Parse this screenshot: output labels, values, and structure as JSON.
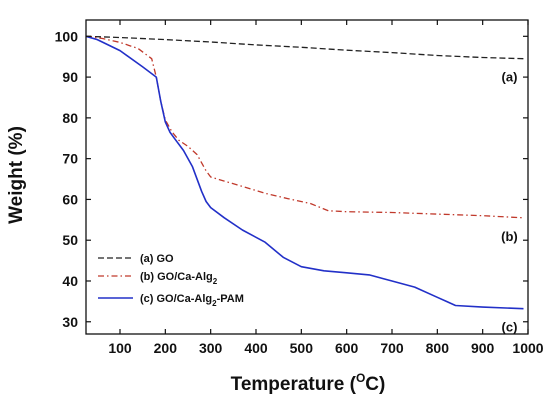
{
  "chart_data": {
    "type": "line",
    "xlabel": "Temperature",
    "xlabel_unit_sup": "O",
    "xlabel_unit_main": "C",
    "ylabel": "Weight (%)",
    "xlim": [
      25,
      1000
    ],
    "ylim": [
      27,
      104
    ],
    "x_ticks": [
      100,
      200,
      300,
      400,
      500,
      600,
      700,
      800,
      900,
      1000
    ],
    "y_ticks": [
      30,
      40,
      50,
      60,
      70,
      80,
      90,
      100
    ],
    "grid": false,
    "legend_position": "bottom-left",
    "series": [
      {
        "name": "(a) GO",
        "legend_main": "(a) GO",
        "legend_sub": "",
        "legend_suffix": "",
        "tag": "(a)",
        "color": "#222222",
        "style": "dashed",
        "x": [
          25,
          100,
          200,
          300,
          400,
          500,
          600,
          700,
          800,
          900,
          990
        ],
        "y": [
          100,
          99.7,
          99.2,
          98.6,
          97.9,
          97.3,
          96.6,
          96.0,
          95.3,
          94.8,
          94.5
        ]
      },
      {
        "name": "(b) GO/Ca-Alg2",
        "legend_main": "(b) GO/Ca-Alg",
        "legend_sub": "2",
        "legend_suffix": "",
        "tag": "(b)",
        "color": "#c0392b",
        "style": "dashdot",
        "x": [
          25,
          60,
          100,
          140,
          170,
          180,
          190,
          200,
          215,
          230,
          250,
          270,
          290,
          300,
          330,
          370,
          420,
          470,
          520,
          560,
          600,
          700,
          800,
          900,
          990
        ],
        "y": [
          100,
          99.5,
          98.5,
          97.0,
          94.5,
          90.0,
          84.0,
          79.5,
          76.5,
          74.5,
          73.0,
          71.0,
          67.0,
          65.5,
          64.5,
          63.2,
          61.5,
          60.2,
          59.0,
          57.2,
          57.0,
          56.8,
          56.4,
          56.0,
          55.5
        ]
      },
      {
        "name": "(c) GO/Ca-Alg2-PAM",
        "legend_main": "(c) GO/Ca-Alg",
        "legend_sub": "2",
        "legend_suffix": "-PAM",
        "tag": "(c)",
        "color": "#2230c8",
        "style": "solid",
        "x": [
          25,
          50,
          100,
          150,
          180,
          190,
          200,
          210,
          220,
          240,
          260,
          280,
          290,
          300,
          330,
          370,
          420,
          460,
          500,
          550,
          600,
          650,
          700,
          750,
          800,
          820,
          840,
          900,
          990
        ],
        "y": [
          100,
          99.2,
          96.5,
          92.5,
          90.0,
          84.0,
          79.0,
          76.5,
          75.0,
          72.0,
          68.0,
          62.0,
          59.5,
          58.0,
          55.5,
          52.5,
          49.5,
          45.8,
          43.5,
          42.5,
          42.0,
          41.5,
          40.0,
          38.5,
          36.0,
          35.0,
          34.0,
          33.6,
          33.2
        ]
      }
    ]
  }
}
